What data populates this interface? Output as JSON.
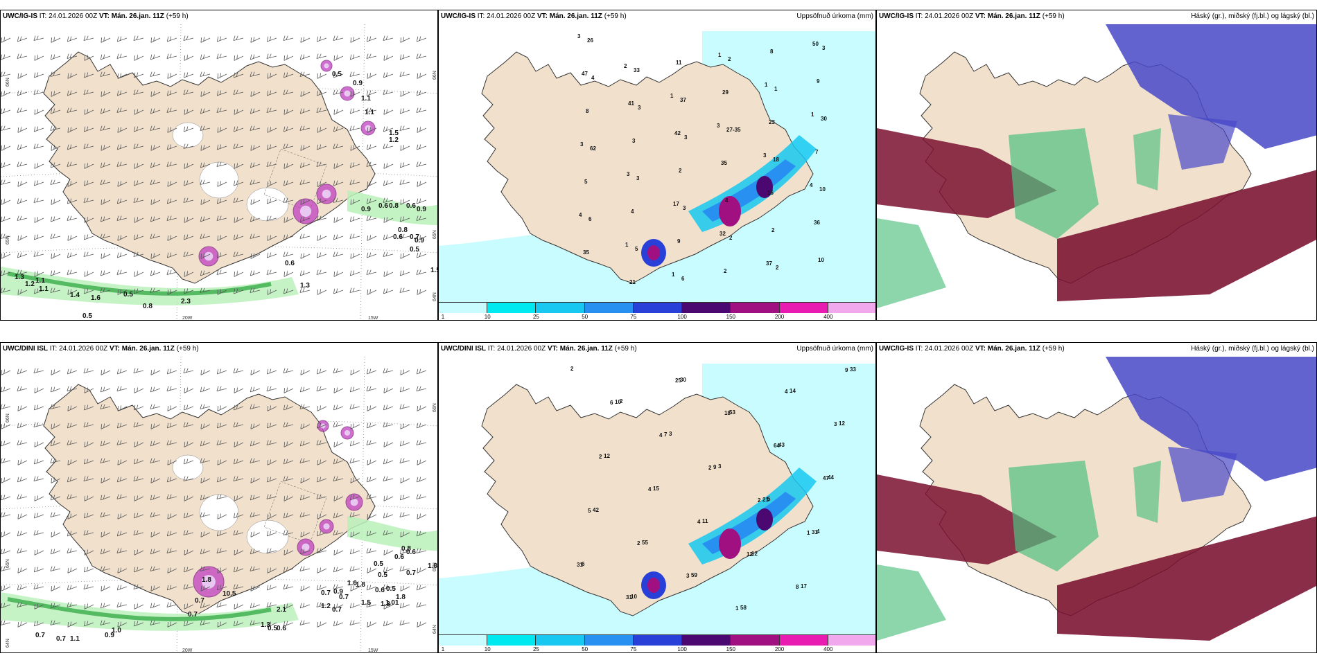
{
  "panels": [
    {
      "id": "p1",
      "header": {
        "model": "UWC/IG-IS",
        "it_label": "IT:",
        "it": "24.01.2026 00Z",
        "vt_label": "VT:",
        "vt": "Mán. 26.jan. 11Z",
        "lead": "(+59 h)",
        "right": ""
      },
      "type": "wind",
      "labels": [
        "0.5",
        "0.9",
        "1.1",
        "1.1",
        "1.5",
        "1.2",
        "0.9",
        "0.6",
        "0.8",
        "0.6",
        "0.9",
        "0.8",
        "0.6",
        "0.7",
        "0.9",
        "0.5",
        "0.6",
        "1.5",
        "0.5",
        "0.8",
        "2.3",
        "0.5",
        "1.3",
        "1.1",
        "1.2",
        "1.1",
        "1.4",
        "1.6",
        "1.3"
      ],
      "grid_labels": [
        "66N",
        "65N",
        "20W",
        "15W",
        "66N",
        "65N",
        "64N"
      ]
    },
    {
      "id": "p2",
      "header": {
        "model": "UWC/IG-IS",
        "it_label": "IT:",
        "it": "24.01.2026 00Z",
        "vt_label": "VT:",
        "vt": "Mán. 26.jan. 11Z",
        "lead": "(+59 h)",
        "right": "Uppsöfnuð úrkoma (mm)"
      },
      "type": "precip",
      "numbers": [
        "3",
        "2",
        "1",
        "3",
        "3",
        "4",
        "4",
        "1",
        "1",
        "1",
        "1",
        "1",
        "3",
        "3",
        "17",
        "32",
        "37",
        "50",
        "47",
        "41",
        "42",
        "35",
        "16",
        "36",
        "35",
        "21",
        "11",
        "29",
        "23",
        "7",
        "5",
        "4",
        "9",
        "2",
        "8",
        "9",
        "8",
        "3",
        "2",
        "4",
        "2",
        "10",
        "26",
        "33",
        "37",
        "27-35",
        "18",
        "10",
        "6",
        "5",
        "6",
        "2",
        "1",
        "30",
        "62",
        "3",
        "3",
        "2",
        "2",
        "3",
        "4",
        "3",
        "3"
      ],
      "colorbar": [
        "1",
        "10",
        "25",
        "50",
        "75",
        "100",
        "150",
        "200",
        "400"
      ]
    },
    {
      "id": "p3",
      "header": {
        "model": "UWC/IG-IS",
        "it_label": "IT:",
        "it": "24.01.2026 00Z",
        "vt_label": "VT:",
        "vt": "Mán. 26.jan. 11Z",
        "lead": "(+59 h)",
        "right": "Háský (gr.), miðský (fj.bl.) og lágský (bl.)"
      },
      "type": "cloud"
    },
    {
      "id": "p4",
      "header": {
        "model": "UWC/DINI ISL",
        "it_label": "IT:",
        "it": "24.01.2026 00Z",
        "vt_label": "VT:",
        "vt": "Mán. 26.jan. 11Z",
        "lead": "(+59 h)",
        "right": ""
      },
      "type": "wind",
      "labels": [
        "0.8",
        "0.6",
        "0.6",
        "0.5",
        "1.8",
        "0.5",
        "0.7",
        "1.6",
        "1.8",
        "0.6",
        "0.5",
        "1.8",
        "0.7",
        "0.9",
        "1.01",
        "1.3",
        "0.7",
        "1.5",
        "1.2",
        "0.7",
        "2.1",
        "1.3",
        "0.5",
        "0.6",
        "10.5",
        "1.8",
        "0.7",
        "0.7",
        "0.7",
        "0.7",
        "0.9",
        "1.0",
        "1.1"
      ],
      "grid_labels": [
        "66N",
        "65N",
        "64N",
        "20W",
        "15W",
        "66N",
        "65N",
        "64N"
      ]
    },
    {
      "id": "p5",
      "header": {
        "model": "UWC/DINI ISL",
        "it_label": "IT:",
        "it": "24.01.2026 00Z",
        "vt_label": "VT:",
        "vt": "Mán. 26.jan. 11Z",
        "lead": "(+59 h)",
        "right": "Uppsöfnuð úrkoma (mm)"
      },
      "type": "precip",
      "numbers": [
        "2",
        "2",
        "3",
        "3",
        "5",
        "4",
        "6",
        "10",
        "30",
        "53",
        "43",
        "44",
        "42",
        "55",
        "59",
        "58",
        "14",
        "12",
        "12",
        "15",
        "11",
        "12",
        "17",
        "33",
        "10",
        "7",
        "9",
        "21",
        "31",
        "31",
        "31",
        "25",
        "18",
        "64",
        "47",
        "5",
        "2",
        "3",
        "1",
        "4",
        "3",
        "2",
        "4",
        "4",
        "12",
        "8",
        "9",
        "6",
        "4",
        "2",
        "2",
        "1"
      ],
      "colorbar": [
        "1",
        "10",
        "25",
        "50",
        "75",
        "100",
        "150",
        "200",
        "400"
      ]
    },
    {
      "id": "p6",
      "header": {
        "model": "UWC/IG-IS",
        "it_label": "IT:",
        "it": "24.01.2026 00Z",
        "vt_label": "VT:",
        "vt": "Mán. 26.jan. 11Z",
        "lead": "(+59 h)",
        "right": "Háský (gr.), miðský (fj.bl.) og lágský (bl.)"
      },
      "type": "cloud"
    }
  ],
  "colors": {
    "land": "#f0e0cc",
    "coast": "#333333",
    "sea_white": "#ffffff",
    "precip_scale": [
      "#c8fcff",
      "#00e8f0",
      "#18c8f0",
      "#2890f0",
      "#2840d8",
      "#4a0870",
      "#a01080",
      "#e81cb0",
      "#f2a8ec"
    ],
    "wind_green": "#40b050",
    "wind_green_light": "#b8f0b8",
    "wind_purple": "#c040c0",
    "cloud_high": "#50c080",
    "cloud_mid": "#7a1030",
    "cloud_low": "#4848c8"
  }
}
